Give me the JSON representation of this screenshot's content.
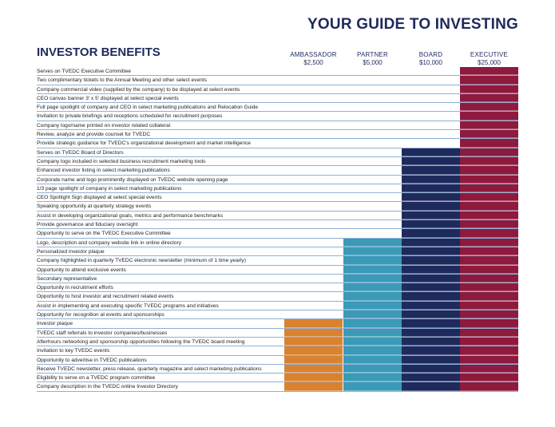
{
  "page": {
    "guide_title": "YOUR GUIDE TO INVESTING",
    "benefits_title": "INVESTOR BENEFITS"
  },
  "tiers": [
    {
      "name": "AMBASSADOR",
      "price": "$2,500",
      "color": "#d98330"
    },
    {
      "name": "PARTNER",
      "price": "$5,000",
      "color": "#3a9ab8"
    },
    {
      "name": "BOARD",
      "price": "$10,000",
      "color": "#1e2a5c"
    },
    {
      "name": "EXECUTIVE",
      "price": "$25,000",
      "color": "#8e1a3e"
    }
  ],
  "benefits": [
    {
      "label": "Serves on TVEDC Executive Committee",
      "min_tier": 3
    },
    {
      "label": "Two complimentary tickets to the Annual Meeting and other select events",
      "min_tier": 3
    },
    {
      "label": "Company commercial video (supplied by the company) to be displayed at select events",
      "min_tier": 3
    },
    {
      "label": "CEO canvas banner 3' x 5' displayed at select special events",
      "min_tier": 3
    },
    {
      "label": "Full page spotlight of company and CEO in select marketing publications and Relocation Guide",
      "min_tier": 3
    },
    {
      "label": "Invitation to private briefings and receptions scheduled  for recruitment purposes",
      "min_tier": 3
    },
    {
      "label": "Company logo/name printed on investor related collateral",
      "min_tier": 3
    },
    {
      "label": "Review, analyze and provide counsel for TVEDC",
      "min_tier": 3
    },
    {
      "label": "Provide strategic guidance for TVEDC's organizational development and market intelligence",
      "min_tier": 3
    },
    {
      "label": "Serves on TVEDC Board of Directors",
      "min_tier": 2
    },
    {
      "label": "Company logo included in selected business recruitment marketing tools",
      "min_tier": 2
    },
    {
      "label": "Enhanced investor listing in select marketing publications",
      "min_tier": 2
    },
    {
      "label": "Corporate name and logo prominently displayed on TVEDC website opening page",
      "min_tier": 2
    },
    {
      "label": "1/3 page spotlight of company in select marketing publications",
      "min_tier": 2
    },
    {
      "label": "CEO Spotlight Sign displayed at select special events",
      "min_tier": 2
    },
    {
      "label": "Speaking opportunity at quarterly strategy events",
      "min_tier": 2
    },
    {
      "label": "Assist in developing organizational goals, metrics and performance benchmarks",
      "min_tier": 2
    },
    {
      "label": "Provide governance and fiduciary oversight",
      "min_tier": 2
    },
    {
      "label": "Opportunity to serve on the TVEDC Executive Committee",
      "min_tier": 2
    },
    {
      "label": "Logo, description and company website link in online directory",
      "min_tier": 1
    },
    {
      "label": "Personalized investor plaque",
      "min_tier": 1
    },
    {
      "label": "Company highlighted in quarterly TVEDC electronic newsletter (minimum of 1 time yearly)",
      "min_tier": 1
    },
    {
      "label": "Opportunity to attend exclusive events",
      "min_tier": 1
    },
    {
      "label": "Secondary representative",
      "min_tier": 1
    },
    {
      "label": "Opportunity in recruitment efforts",
      "min_tier": 1
    },
    {
      "label": "Opportunity to host investor and recruitment related events",
      "min_tier": 1
    },
    {
      "label": "Assist in implementing and executing specific TVEDC programs and initiatives",
      "min_tier": 1
    },
    {
      "label": "Opportunity for recognition at events and sponsorships",
      "min_tier": 1
    },
    {
      "label": "Investor plaque",
      "min_tier": 0
    },
    {
      "label": "TVEDC staff referrals to investor companies/businesses",
      "min_tier": 0
    },
    {
      "label": "Afterhours networking and sponsorship opportunities following the TVEDC board meeting",
      "min_tier": 0
    },
    {
      "label": "Invitation to key TVEDC events",
      "min_tier": 0
    },
    {
      "label": "Opportunity to advertise in TVEDC publications",
      "min_tier": 0
    },
    {
      "label": "Receive TVEDC newsletter, press release, quarterly magazine and select marketing publications",
      "min_tier": 0
    },
    {
      "label": "Eligibility to serve on a TVEDC program committee",
      "min_tier": 0
    },
    {
      "label": "Company description in the TVEDC online Investor Directory",
      "min_tier": 0
    }
  ]
}
